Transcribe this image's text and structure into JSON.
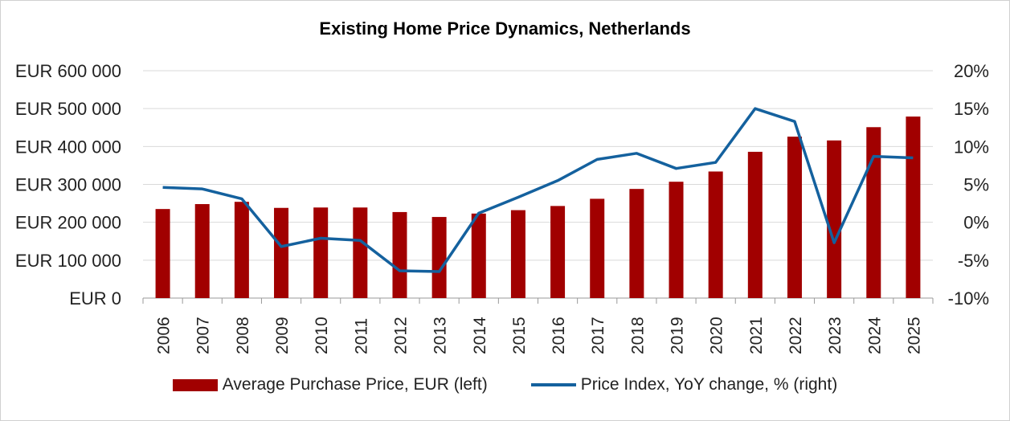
{
  "chart_data": {
    "type": "bar",
    "title": "Existing Home Price Dynamics, Netherlands",
    "categories": [
      "2006",
      "2007",
      "2008",
      "2009",
      "2010",
      "2011",
      "2012",
      "2013",
      "2014",
      "2015",
      "2016",
      "2017",
      "2018",
      "2019",
      "2020",
      "2021",
      "2022",
      "2023",
      "2024",
      "2025"
    ],
    "series": [
      {
        "name": "Average Purchase Price, EUR (left)",
        "type": "bar",
        "axis": "left",
        "color": "#a10000",
        "values": [
          235000,
          248000,
          254000,
          238000,
          239000,
          239000,
          227000,
          214000,
          223000,
          232000,
          243000,
          262000,
          288000,
          307000,
          334000,
          386000,
          426000,
          416000,
          451000,
          479000
        ]
      },
      {
        "name": "Price Index, YoY change, % (right)",
        "type": "line",
        "axis": "right",
        "color": "#14619e",
        "values": [
          4.6,
          4.4,
          3.1,
          -3.2,
          -2.1,
          -2.4,
          -6.4,
          -6.5,
          1.2,
          3.3,
          5.5,
          8.3,
          9.1,
          7.1,
          7.9,
          15.0,
          13.3,
          -2.7,
          8.7,
          8.5
        ]
      }
    ],
    "ylim_left": [
      0,
      600000
    ],
    "ylim_right": [
      -10,
      20
    ],
    "yticks_left": [
      "EUR 0",
      "EUR 100 000",
      "EUR 200 000",
      "EUR 300 000",
      "EUR 400 000",
      "EUR 500 000",
      "EUR 600 000"
    ],
    "yticks_right": [
      "-10%",
      "-5%",
      "0%",
      "5%",
      "10%",
      "15%",
      "20%"
    ],
    "grid": true,
    "legend_position": "bottom"
  }
}
